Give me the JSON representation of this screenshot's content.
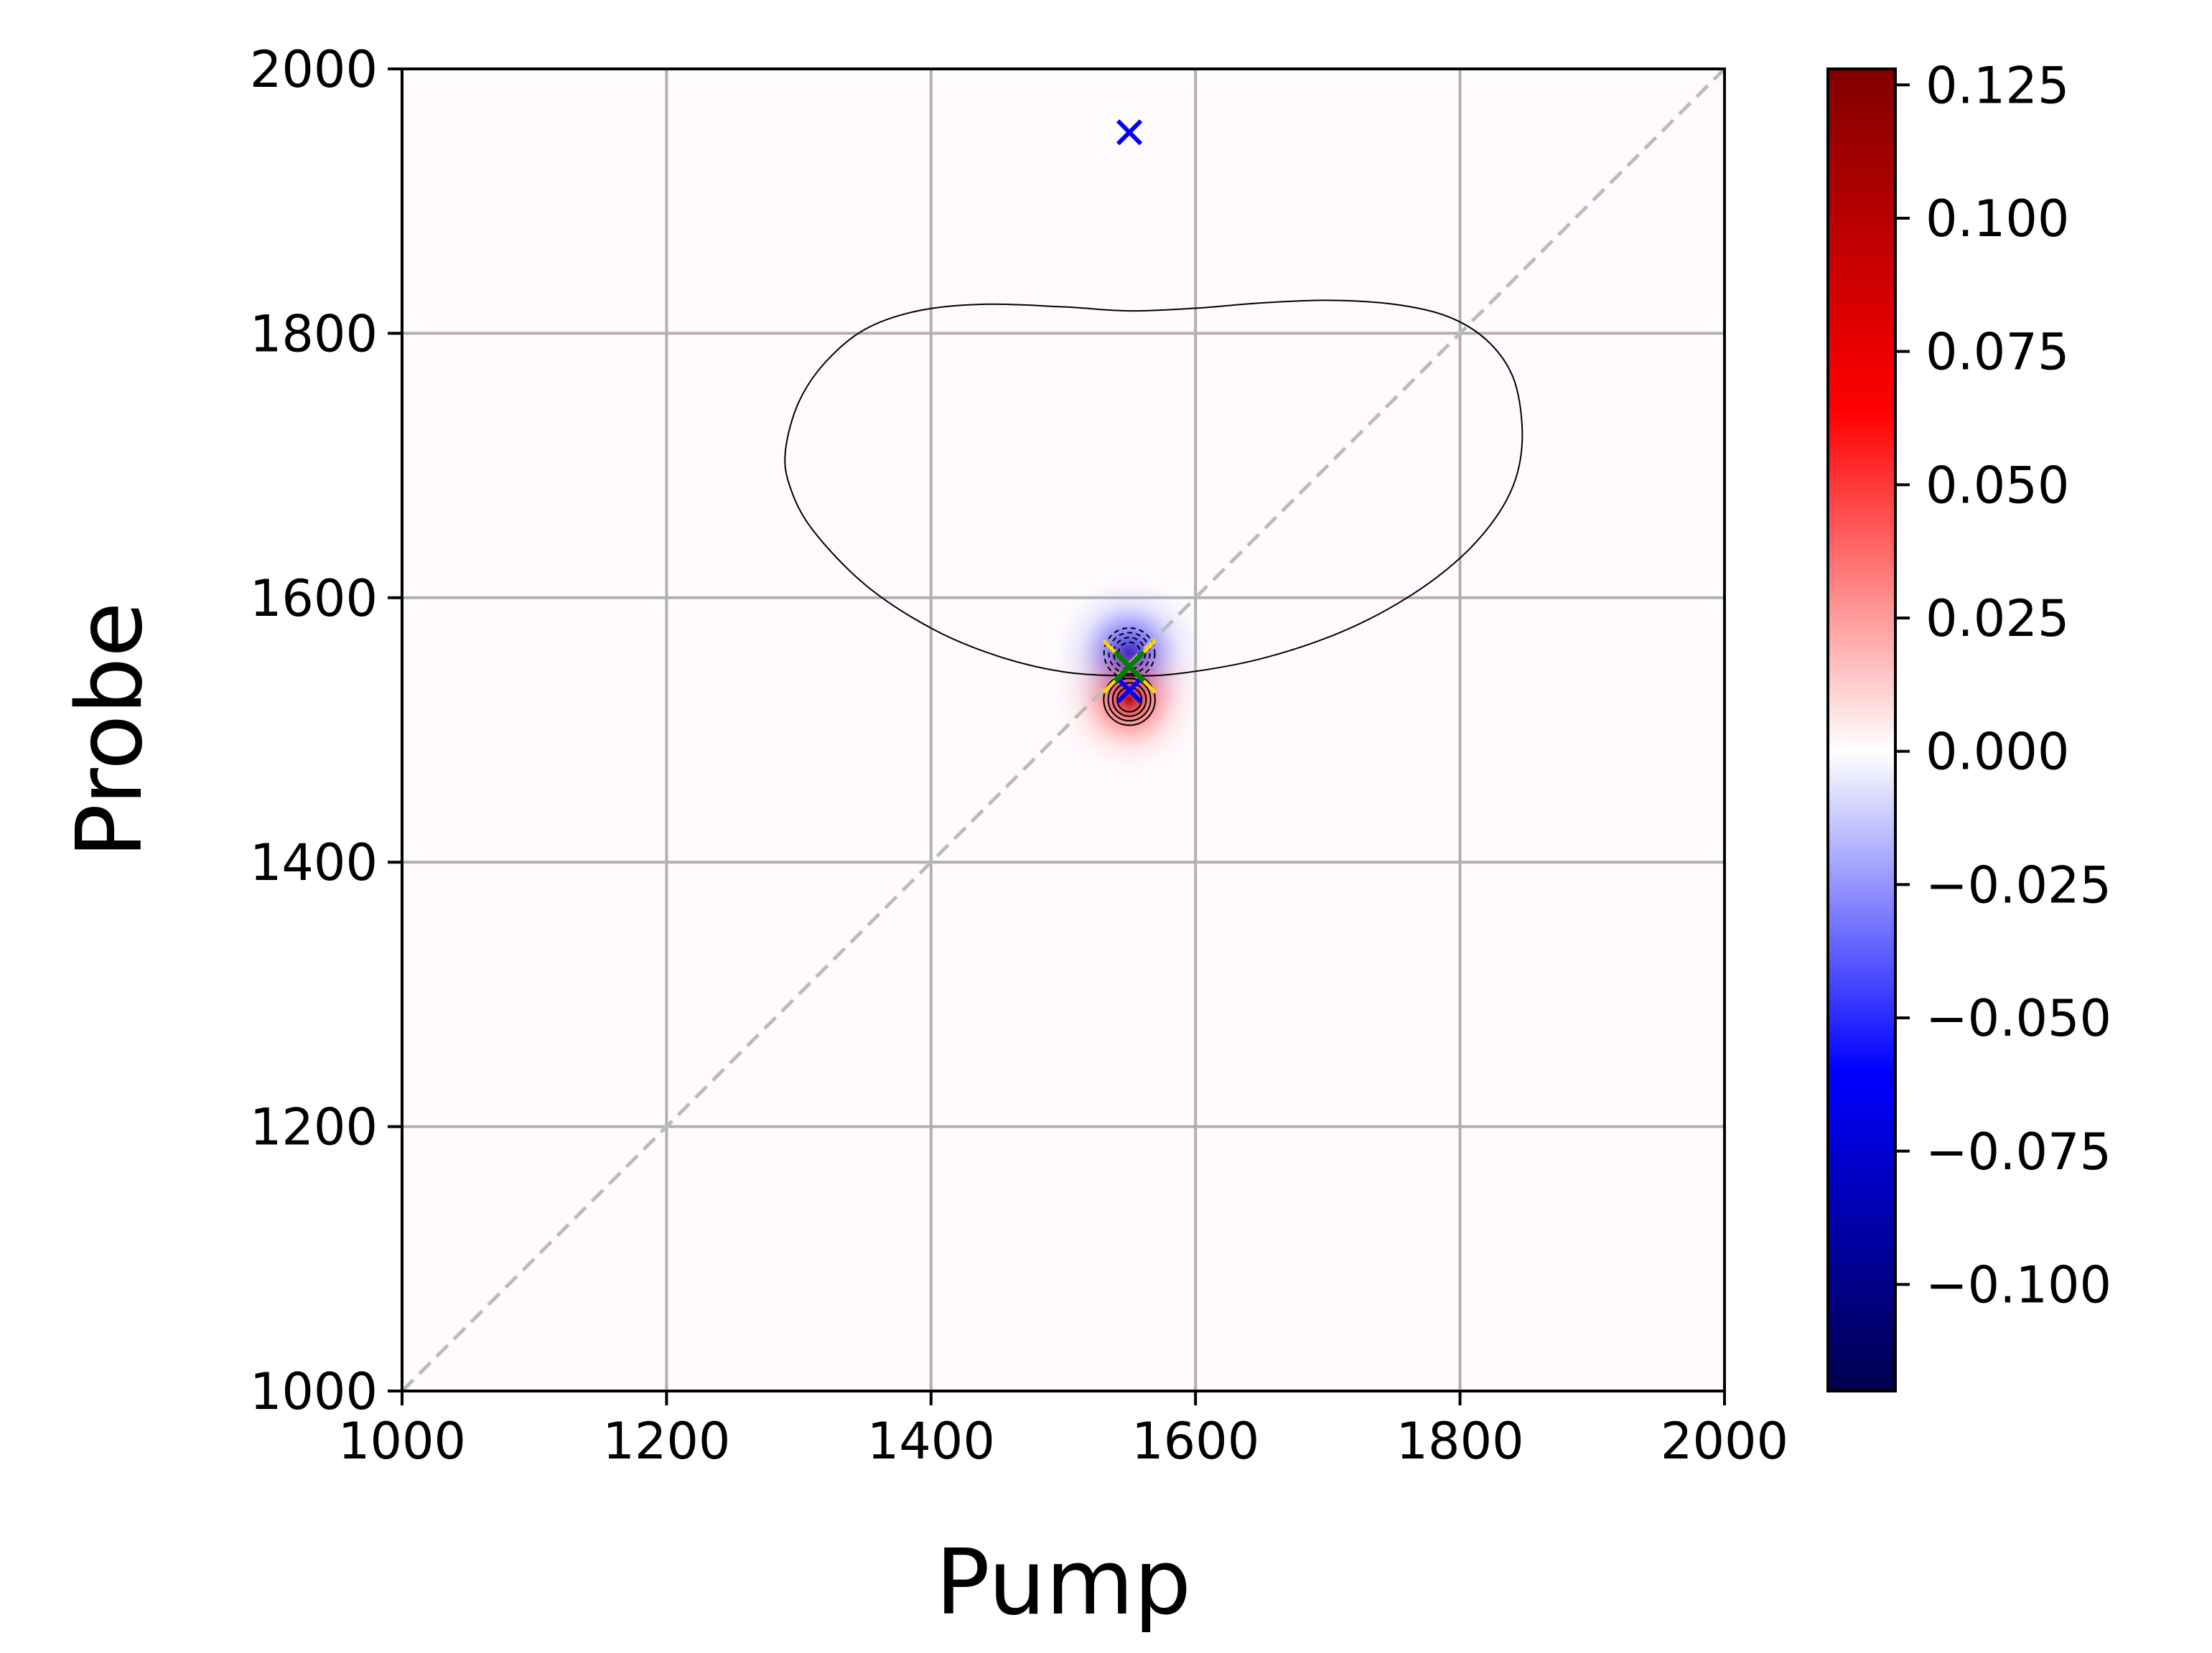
{
  "chart_data": {
    "type": "heatmap",
    "title": "",
    "xlabel": "Pump",
    "ylabel": "Probe",
    "xlim": [
      1000,
      2000
    ],
    "ylim": [
      1000,
      2000
    ],
    "xticks": [
      "1000",
      "1200",
      "1400",
      "1600",
      "1800",
      "2000"
    ],
    "yticks": [
      "1000",
      "1200",
      "1400",
      "1600",
      "1800",
      "2000"
    ],
    "grid": true,
    "colormap": "seismic",
    "colorbar": {
      "range": [
        -0.12,
        0.128
      ],
      "ticks": [
        "0.125",
        "0.100",
        "0.075",
        "0.050",
        "0.025",
        "0.000",
        "−0.025",
        "−0.050",
        "−0.075",
        "−0.100"
      ],
      "tick_values": [
        0.125,
        0.1,
        0.075,
        0.05,
        0.025,
        0.0,
        -0.025,
        -0.05,
        -0.075,
        -0.1
      ]
    },
    "diagonal": {
      "from": [
        1000,
        1000
      ],
      "to": [
        2000,
        2000
      ],
      "style": "dashed",
      "color": "#bbbbbb"
    },
    "zero_contour": [
      [
        1290,
        1712
      ],
      [
        1300,
        1748
      ],
      [
        1320,
        1778
      ],
      [
        1350,
        1803
      ],
      [
        1390,
        1817
      ],
      [
        1440,
        1822
      ],
      [
        1500,
        1820
      ],
      [
        1550,
        1817
      ],
      [
        1600,
        1819
      ],
      [
        1650,
        1823
      ],
      [
        1700,
        1825
      ],
      [
        1750,
        1822
      ],
      [
        1790,
        1813
      ],
      [
        1820,
        1795
      ],
      [
        1840,
        1767
      ],
      [
        1847,
        1728
      ],
      [
        1843,
        1693
      ],
      [
        1828,
        1662
      ],
      [
        1800,
        1630
      ],
      [
        1760,
        1600
      ],
      [
        1710,
        1574
      ],
      [
        1650,
        1554
      ],
      [
        1590,
        1543
      ],
      [
        1550,
        1541
      ],
      [
        1500,
        1544
      ],
      [
        1450,
        1556
      ],
      [
        1400,
        1577
      ],
      [
        1350,
        1610
      ],
      [
        1310,
        1652
      ],
      [
        1293,
        1685
      ],
      [
        1290,
        1712
      ]
    ],
    "features": [
      {
        "name": "negative-lobe",
        "center": [
          1550,
          1558
        ],
        "peak": -0.12,
        "levels": [
          -0.1,
          -0.075,
          -0.05,
          -0.025
        ]
      },
      {
        "name": "positive-lobe",
        "center": [
          1550,
          1523
        ],
        "peak": 0.128,
        "levels": [
          0.025,
          0.05,
          0.075,
          0.1
        ]
      }
    ],
    "markers": [
      {
        "x": 1550,
        "y": 1952,
        "symbol": "x",
        "color": "#0000ff"
      },
      {
        "x": 1550,
        "y": 1530,
        "symbol": "x",
        "color": "#0000ff"
      },
      {
        "x": 1550,
        "y": 1548,
        "symbol": "x",
        "color": "#ffd700"
      },
      {
        "x": 1550,
        "y": 1548,
        "symbol": "x",
        "color": "#008000"
      }
    ],
    "colors": {
      "grid": "#b0b0b0",
      "contour": "#000000",
      "axes": "#000000"
    }
  }
}
